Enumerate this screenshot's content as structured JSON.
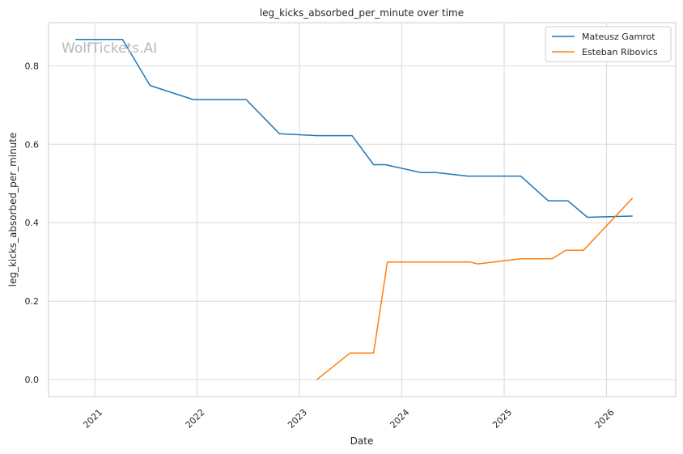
{
  "watermark": "WolfTickets.AI",
  "chart_data": {
    "type": "line",
    "title": "leg_kicks_absorbed_per_minute over time",
    "xlabel": "Date",
    "ylabel": "leg_kicks_absorbed_per_minute",
    "x_ticks": [
      "2021",
      "2022",
      "2023",
      "2024",
      "2025",
      "2026"
    ],
    "y_ticks": [
      "0.0",
      "0.2",
      "0.4",
      "0.6",
      "0.8"
    ],
    "xlim": [
      "2020-07-20",
      "2026-09-05"
    ],
    "ylim": [
      -0.043,
      0.91
    ],
    "grid": true,
    "legend_position": "top-right",
    "series": [
      {
        "name": "Mateusz Gamrot",
        "color": "#1f77b4",
        "points": [
          [
            "2020-10-24",
            0.867
          ],
          [
            "2021-04-10",
            0.867
          ],
          [
            "2021-07-17",
            0.75
          ],
          [
            "2021-12-18",
            0.714
          ],
          [
            "2022-06-25",
            0.714
          ],
          [
            "2022-10-22",
            0.627
          ],
          [
            "2023-03-04",
            0.622
          ],
          [
            "2023-07-08",
            0.622
          ],
          [
            "2023-09-23",
            0.548
          ],
          [
            "2023-11-04",
            0.548
          ],
          [
            "2024-03-09",
            0.528
          ],
          [
            "2024-05-04",
            0.528
          ],
          [
            "2024-08-24",
            0.519
          ],
          [
            "2025-03-01",
            0.519
          ],
          [
            "2025-06-07",
            0.456
          ],
          [
            "2025-08-16",
            0.456
          ],
          [
            "2025-10-25",
            0.414
          ],
          [
            "2026-04-04",
            0.417
          ]
        ]
      },
      {
        "name": "Esteban Ribovics",
        "color": "#ff7f0e",
        "points": [
          [
            "2023-03-04",
            0.0
          ],
          [
            "2023-07-01",
            0.068
          ],
          [
            "2023-09-23",
            0.068
          ],
          [
            "2023-11-11",
            0.3
          ],
          [
            "2024-08-31",
            0.3
          ],
          [
            "2024-09-28",
            0.295
          ],
          [
            "2025-03-01",
            0.308
          ],
          [
            "2025-06-21",
            0.308
          ],
          [
            "2025-08-09",
            0.33
          ],
          [
            "2025-10-11",
            0.33
          ],
          [
            "2026-04-04",
            0.463
          ]
        ]
      }
    ]
  }
}
